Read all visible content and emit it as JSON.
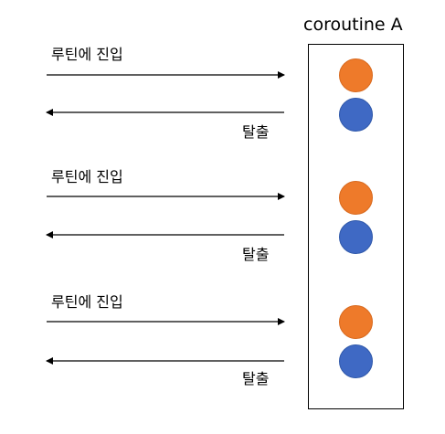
{
  "diagram": {
    "title": "coroutine A",
    "enter_label": "루틴에 진입",
    "exit_label": "탈출",
    "groups": [
      {
        "enter_label": "루틴에 진입",
        "exit_label": "탈출"
      },
      {
        "enter_label": "루틴에 진입",
        "exit_label": "탈출"
      },
      {
        "enter_label": "루틴에 진입",
        "exit_label": "탈출"
      }
    ],
    "colors": {
      "enter_dot": "#ee7a2a",
      "exit_dot": "#3f69c4",
      "arrow": "#000000",
      "box_border": "#000000"
    }
  }
}
